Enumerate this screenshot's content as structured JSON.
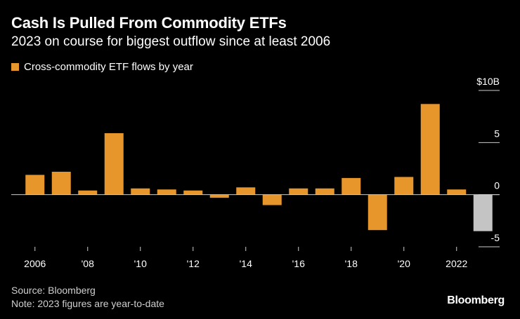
{
  "header": {
    "title": "Cash Is Pulled From Commodity ETFs",
    "subtitle": "2023 on course for biggest outflow since at least 2006"
  },
  "footer": {
    "source": "Source: Bloomberg",
    "note": "Note: 2023 figures are year-to-date",
    "brand": "Bloomberg"
  },
  "colors": {
    "bar": "#e6962b",
    "bar_ytd": "#c4c4c4",
    "axis": "#cccccc",
    "tick": "#ffffff"
  },
  "chart_data": {
    "type": "bar",
    "title": "Cash Is Pulled From Commodity ETFs",
    "subtitle": "2023 on course for biggest outflow since at least 2006",
    "legend": "Cross-commodity ETF flows by year",
    "x": [
      2006,
      2007,
      2008,
      2009,
      2010,
      2011,
      2012,
      2013,
      2014,
      2015,
      2016,
      2017,
      2018,
      2019,
      2020,
      2021,
      2022,
      2023
    ],
    "values": [
      1.9,
      2.2,
      0.4,
      5.9,
      0.6,
      0.5,
      0.4,
      -0.3,
      0.7,
      -1.0,
      0.6,
      0.6,
      1.6,
      -3.4,
      1.7,
      8.7,
      0.5,
      -3.5
    ],
    "ytd_highlight": 2023,
    "x_tick_labels": [
      "2006",
      "'08",
      "'10",
      "'12",
      "'14",
      "'16",
      "'18",
      "'20",
      "2022"
    ],
    "x_tick_years": [
      2006,
      2008,
      2010,
      2012,
      2014,
      2016,
      2018,
      2020,
      2022
    ],
    "y_ticks": [
      -5,
      0,
      5,
      10
    ],
    "y_tick_labels": [
      "-5",
      "0",
      "5",
      "$10B"
    ],
    "ylim": [
      -5,
      10
    ],
    "ylabel": "",
    "xlabel": "",
    "grid": false,
    "legend_position": "top-left"
  }
}
